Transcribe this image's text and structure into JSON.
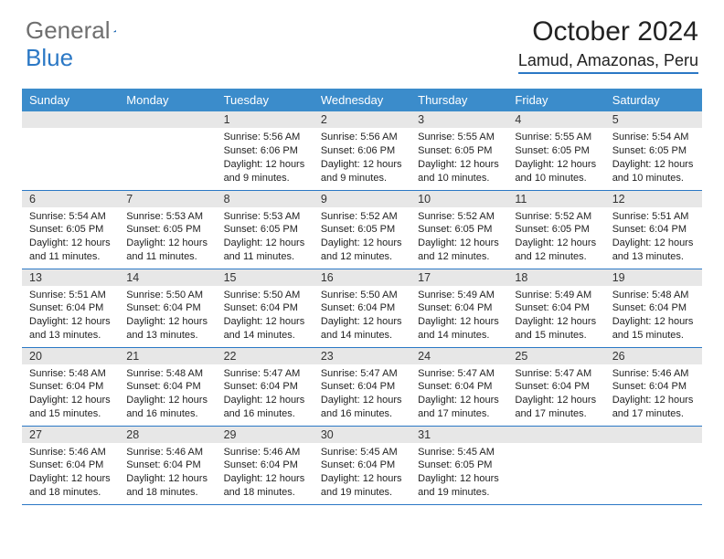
{
  "logo": {
    "text_gray": "General",
    "text_blue": "Blue"
  },
  "header": {
    "month_title": "October 2024",
    "location": "Lamud, Amazonas, Peru"
  },
  "colors": {
    "header_bg": "#3b8ccb",
    "daynum_bg": "#e7e7e7",
    "rule": "#2b78c5",
    "logo_gray": "#6f6f6f",
    "logo_blue": "#2b78c5"
  },
  "weekdays": [
    "Sunday",
    "Monday",
    "Tuesday",
    "Wednesday",
    "Thursday",
    "Friday",
    "Saturday"
  ],
  "weeks": [
    [
      null,
      null,
      {
        "n": "1",
        "sr": "5:56 AM",
        "ss": "6:06 PM",
        "dl": "12 hours and 9 minutes."
      },
      {
        "n": "2",
        "sr": "5:56 AM",
        "ss": "6:06 PM",
        "dl": "12 hours and 9 minutes."
      },
      {
        "n": "3",
        "sr": "5:55 AM",
        "ss": "6:05 PM",
        "dl": "12 hours and 10 minutes."
      },
      {
        "n": "4",
        "sr": "5:55 AM",
        "ss": "6:05 PM",
        "dl": "12 hours and 10 minutes."
      },
      {
        "n": "5",
        "sr": "5:54 AM",
        "ss": "6:05 PM",
        "dl": "12 hours and 10 minutes."
      }
    ],
    [
      {
        "n": "6",
        "sr": "5:54 AM",
        "ss": "6:05 PM",
        "dl": "12 hours and 11 minutes."
      },
      {
        "n": "7",
        "sr": "5:53 AM",
        "ss": "6:05 PM",
        "dl": "12 hours and 11 minutes."
      },
      {
        "n": "8",
        "sr": "5:53 AM",
        "ss": "6:05 PM",
        "dl": "12 hours and 11 minutes."
      },
      {
        "n": "9",
        "sr": "5:52 AM",
        "ss": "6:05 PM",
        "dl": "12 hours and 12 minutes."
      },
      {
        "n": "10",
        "sr": "5:52 AM",
        "ss": "6:05 PM",
        "dl": "12 hours and 12 minutes."
      },
      {
        "n": "11",
        "sr": "5:52 AM",
        "ss": "6:05 PM",
        "dl": "12 hours and 12 minutes."
      },
      {
        "n": "12",
        "sr": "5:51 AM",
        "ss": "6:04 PM",
        "dl": "12 hours and 13 minutes."
      }
    ],
    [
      {
        "n": "13",
        "sr": "5:51 AM",
        "ss": "6:04 PM",
        "dl": "12 hours and 13 minutes."
      },
      {
        "n": "14",
        "sr": "5:50 AM",
        "ss": "6:04 PM",
        "dl": "12 hours and 13 minutes."
      },
      {
        "n": "15",
        "sr": "5:50 AM",
        "ss": "6:04 PM",
        "dl": "12 hours and 14 minutes."
      },
      {
        "n": "16",
        "sr": "5:50 AM",
        "ss": "6:04 PM",
        "dl": "12 hours and 14 minutes."
      },
      {
        "n": "17",
        "sr": "5:49 AM",
        "ss": "6:04 PM",
        "dl": "12 hours and 14 minutes."
      },
      {
        "n": "18",
        "sr": "5:49 AM",
        "ss": "6:04 PM",
        "dl": "12 hours and 15 minutes."
      },
      {
        "n": "19",
        "sr": "5:48 AM",
        "ss": "6:04 PM",
        "dl": "12 hours and 15 minutes."
      }
    ],
    [
      {
        "n": "20",
        "sr": "5:48 AM",
        "ss": "6:04 PM",
        "dl": "12 hours and 15 minutes."
      },
      {
        "n": "21",
        "sr": "5:48 AM",
        "ss": "6:04 PM",
        "dl": "12 hours and 16 minutes."
      },
      {
        "n": "22",
        "sr": "5:47 AM",
        "ss": "6:04 PM",
        "dl": "12 hours and 16 minutes."
      },
      {
        "n": "23",
        "sr": "5:47 AM",
        "ss": "6:04 PM",
        "dl": "12 hours and 16 minutes."
      },
      {
        "n": "24",
        "sr": "5:47 AM",
        "ss": "6:04 PM",
        "dl": "12 hours and 17 minutes."
      },
      {
        "n": "25",
        "sr": "5:47 AM",
        "ss": "6:04 PM",
        "dl": "12 hours and 17 minutes."
      },
      {
        "n": "26",
        "sr": "5:46 AM",
        "ss": "6:04 PM",
        "dl": "12 hours and 17 minutes."
      }
    ],
    [
      {
        "n": "27",
        "sr": "5:46 AM",
        "ss": "6:04 PM",
        "dl": "12 hours and 18 minutes."
      },
      {
        "n": "28",
        "sr": "5:46 AM",
        "ss": "6:04 PM",
        "dl": "12 hours and 18 minutes."
      },
      {
        "n": "29",
        "sr": "5:46 AM",
        "ss": "6:04 PM",
        "dl": "12 hours and 18 minutes."
      },
      {
        "n": "30",
        "sr": "5:45 AM",
        "ss": "6:04 PM",
        "dl": "12 hours and 19 minutes."
      },
      {
        "n": "31",
        "sr": "5:45 AM",
        "ss": "6:05 PM",
        "dl": "12 hours and 19 minutes."
      },
      null,
      null
    ]
  ],
  "labels": {
    "sunrise": "Sunrise:",
    "sunset": "Sunset:",
    "daylight": "Daylight:"
  }
}
